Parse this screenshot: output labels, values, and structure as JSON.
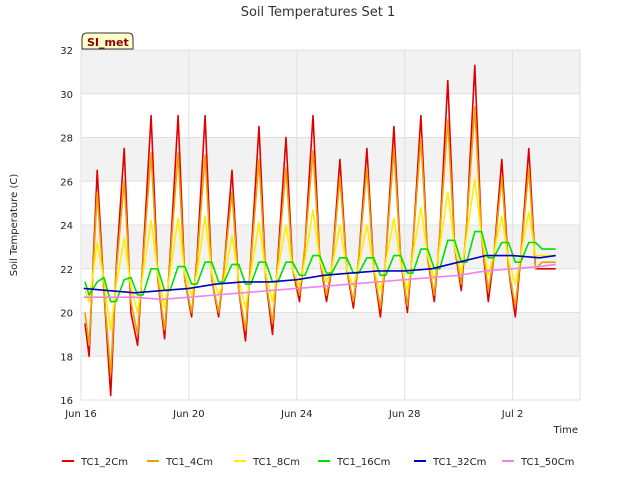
{
  "chart_data": {
    "type": "line",
    "title": "Soil Temperatures Set 1",
    "xlabel": "Time",
    "ylabel": "Soil Temperature (C)",
    "badge": "SI_met",
    "ylim": [
      16,
      32
    ],
    "yticks": [
      16,
      18,
      20,
      22,
      24,
      26,
      28,
      30,
      32
    ],
    "xlim": [
      0,
      18.5
    ],
    "xticks": [
      {
        "label": "Jun 16",
        "value": 0
      },
      {
        "label": "Jun 20",
        "value": 4
      },
      {
        "label": "Jun 24",
        "value": 8
      },
      {
        "label": "Jun 28",
        "value": 12
      },
      {
        "label": "Jul 2",
        "value": 16
      }
    ],
    "x_unit": "days since Jun 16",
    "grid": true,
    "legend_position": "bottom",
    "series": [
      {
        "name": "TC1_2Cm",
        "color": "#e00000",
        "x": [
          0.15,
          0.3,
          0.6,
          0.85,
          1.1,
          1.3,
          1.6,
          1.85,
          2.1,
          2.3,
          2.6,
          2.85,
          3.1,
          3.3,
          3.6,
          3.85,
          4.1,
          4.3,
          4.6,
          4.85,
          5.1,
          5.3,
          5.6,
          5.85,
          6.1,
          6.3,
          6.6,
          6.85,
          7.1,
          7.3,
          7.6,
          7.85,
          8.1,
          8.3,
          8.6,
          8.85,
          9.1,
          9.3,
          9.6,
          9.85,
          10.1,
          10.3,
          10.6,
          10.85,
          11.1,
          11.3,
          11.6,
          11.85,
          12.1,
          12.3,
          12.6,
          12.85,
          13.1,
          13.3,
          13.6,
          13.85,
          14.1,
          14.3,
          14.6,
          14.85,
          15.1,
          15.3,
          15.6,
          15.85,
          16.1,
          16.3,
          16.6,
          16.85,
          17.1,
          17.3,
          17.6
        ],
        "y": [
          19.5,
          18.0,
          26.5,
          21.0,
          16.2,
          22.0,
          27.5,
          20.0,
          18.5,
          22.5,
          29.0,
          21.5,
          18.8,
          22.5,
          29.0,
          21.5,
          19.8,
          22.5,
          29.0,
          21.5,
          19.8,
          22.0,
          26.5,
          21.0,
          18.7,
          22.5,
          28.5,
          21.5,
          19.0,
          22.5,
          28.0,
          22.0,
          20.5,
          23.0,
          29.0,
          22.5,
          20.5,
          22.0,
          27.0,
          22.0,
          20.2,
          22.5,
          27.5,
          22.0,
          19.8,
          22.5,
          28.5,
          22.5,
          20.0,
          23.0,
          29.0,
          22.5,
          20.5,
          23.5,
          30.6,
          23.0,
          21.0,
          24.0,
          31.3,
          23.5,
          20.5,
          22.5,
          27.0,
          22.0,
          19.8,
          22.5,
          27.5,
          22.0,
          22.0,
          22.0,
          22.0
        ]
      },
      {
        "name": "TC1_4Cm",
        "color": "#f0a000",
        "x": [
          0.15,
          0.3,
          0.6,
          0.85,
          1.1,
          1.3,
          1.6,
          1.85,
          2.1,
          2.3,
          2.6,
          2.85,
          3.1,
          3.3,
          3.6,
          3.85,
          4.1,
          4.3,
          4.6,
          4.85,
          5.1,
          5.3,
          5.6,
          5.85,
          6.1,
          6.3,
          6.6,
          6.85,
          7.1,
          7.3,
          7.6,
          7.85,
          8.1,
          8.3,
          8.6,
          8.85,
          9.1,
          9.3,
          9.6,
          9.85,
          10.1,
          10.3,
          10.6,
          10.85,
          11.1,
          11.3,
          11.6,
          11.85,
          12.1,
          12.3,
          12.6,
          12.85,
          13.1,
          13.3,
          13.6,
          13.85,
          14.1,
          14.3,
          14.6,
          14.85,
          15.1,
          15.3,
          15.6,
          15.85,
          16.1,
          16.3,
          16.6,
          16.85,
          17.1,
          17.3,
          17.6
        ],
        "y": [
          20.0,
          18.5,
          25.5,
          21.0,
          17.2,
          21.8,
          26.0,
          20.5,
          19.0,
          22.3,
          27.3,
          21.5,
          19.2,
          22.3,
          27.3,
          21.5,
          20.0,
          22.3,
          27.2,
          21.5,
          20.0,
          22.0,
          25.5,
          21.0,
          19.2,
          22.3,
          27.0,
          21.5,
          19.5,
          22.3,
          26.6,
          22.0,
          20.8,
          23.0,
          27.4,
          22.5,
          20.8,
          22.0,
          26.2,
          22.0,
          20.5,
          22.5,
          26.6,
          22.0,
          20.2,
          22.5,
          27.5,
          22.5,
          20.3,
          23.0,
          28.0,
          22.5,
          20.8,
          23.5,
          28.8,
          23.0,
          21.3,
          24.0,
          29.4,
          23.5,
          21.0,
          22.5,
          26.2,
          22.0,
          20.3,
          22.5,
          26.6,
          22.0,
          22.3,
          22.3,
          22.3
        ]
      },
      {
        "name": "TC1_8Cm",
        "color": "#ffee00",
        "x": [
          0.15,
          0.3,
          0.6,
          0.85,
          1.1,
          1.3,
          1.6,
          1.85,
          2.1,
          2.3,
          2.6,
          2.85,
          3.1,
          3.3,
          3.6,
          3.85,
          4.1,
          4.3,
          4.6,
          4.85,
          5.1,
          5.3,
          5.6,
          5.85,
          6.1,
          6.3,
          6.6,
          6.85,
          7.1,
          7.3,
          7.6,
          7.85,
          8.1,
          8.3,
          8.6,
          8.85,
          9.1,
          9.3,
          9.6,
          9.85,
          10.1,
          10.3,
          10.6,
          10.85,
          11.1,
          11.3,
          11.6,
          11.85,
          12.1,
          12.3,
          12.6,
          12.85,
          13.1,
          13.3,
          13.6,
          13.85,
          14.1,
          14.3,
          14.6,
          14.85,
          15.1,
          15.3,
          15.6,
          15.85,
          16.1,
          16.3,
          16.6,
          16.85,
          17.1,
          17.3,
          17.6
        ],
        "y": [
          21.0,
          20.5,
          23.2,
          21.5,
          19.2,
          21.2,
          23.4,
          21.2,
          20.0,
          21.8,
          24.2,
          21.8,
          20.2,
          21.8,
          24.3,
          21.8,
          20.8,
          21.8,
          24.4,
          21.8,
          20.8,
          21.5,
          23.5,
          21.5,
          20.2,
          21.8,
          24.1,
          21.8,
          20.5,
          22.0,
          24.0,
          22.0,
          21.2,
          22.4,
          24.7,
          22.4,
          21.4,
          22.0,
          24.0,
          22.0,
          21.2,
          22.2,
          24.0,
          22.0,
          21.0,
          22.3,
          24.3,
          22.3,
          21.0,
          22.6,
          24.8,
          22.6,
          21.5,
          23.0,
          25.5,
          23.0,
          21.8,
          23.5,
          26.1,
          23.5,
          21.7,
          22.7,
          24.4,
          22.4,
          21.3,
          22.6,
          24.6,
          22.6,
          22.6,
          22.6,
          22.6
        ]
      },
      {
        "name": "TC1_16Cm",
        "color": "#00e000",
        "x": [
          0.15,
          0.3,
          0.6,
          0.85,
          1.1,
          1.3,
          1.6,
          1.85,
          2.1,
          2.3,
          2.6,
          2.85,
          3.1,
          3.3,
          3.6,
          3.85,
          4.1,
          4.3,
          4.6,
          4.85,
          5.1,
          5.3,
          5.6,
          5.85,
          6.1,
          6.3,
          6.6,
          6.85,
          7.1,
          7.3,
          7.6,
          7.85,
          8.1,
          8.3,
          8.6,
          8.85,
          9.1,
          9.3,
          9.6,
          9.85,
          10.1,
          10.3,
          10.6,
          10.85,
          11.1,
          11.3,
          11.6,
          11.85,
          12.1,
          12.3,
          12.6,
          12.85,
          13.1,
          13.3,
          13.6,
          13.85,
          14.1,
          14.3,
          14.6,
          14.85,
          15.1,
          15.3,
          15.6,
          15.85,
          16.1,
          16.3,
          16.6,
          16.85,
          17.1,
          17.3,
          17.6
        ],
        "y": [
          21.4,
          20.8,
          21.4,
          21.6,
          20.5,
          20.5,
          21.5,
          21.6,
          20.8,
          20.8,
          22.0,
          22.0,
          21.0,
          21.0,
          22.1,
          22.1,
          21.3,
          21.3,
          22.3,
          22.3,
          21.4,
          21.4,
          22.2,
          22.2,
          21.3,
          21.3,
          22.3,
          22.3,
          21.4,
          21.4,
          22.3,
          22.3,
          21.7,
          21.7,
          22.6,
          22.6,
          21.8,
          21.8,
          22.5,
          22.5,
          21.8,
          21.8,
          22.5,
          22.5,
          21.7,
          21.7,
          22.6,
          22.6,
          21.8,
          21.8,
          22.9,
          22.9,
          22.0,
          22.0,
          23.3,
          23.3,
          22.3,
          22.3,
          23.7,
          23.7,
          22.5,
          22.5,
          23.2,
          23.2,
          22.3,
          22.3,
          23.2,
          23.2,
          22.9,
          22.9,
          22.9
        ]
      },
      {
        "name": "TC1_32Cm",
        "color": "#0000c0",
        "x": [
          0.1,
          1.0,
          2.0,
          3.0,
          4.0,
          5.0,
          6.0,
          7.0,
          8.0,
          9.0,
          10.0,
          11.0,
          12.0,
          13.0,
          14.0,
          15.0,
          16.0,
          17.0,
          17.6
        ],
        "y": [
          21.1,
          21.0,
          20.9,
          21.0,
          21.1,
          21.3,
          21.4,
          21.4,
          21.5,
          21.7,
          21.8,
          21.9,
          21.9,
          22.0,
          22.3,
          22.6,
          22.6,
          22.5,
          22.6
        ]
      },
      {
        "name": "TC1_50Cm",
        "color": "#ee82ee",
        "x": [
          0.1,
          1.0,
          2.0,
          3.0,
          4.0,
          5.0,
          6.0,
          7.0,
          8.0,
          9.0,
          10.0,
          11.0,
          12.0,
          13.0,
          14.0,
          15.0,
          16.0,
          17.0,
          17.6
        ],
        "y": [
          20.7,
          20.7,
          20.7,
          20.6,
          20.7,
          20.8,
          20.9,
          21.0,
          21.1,
          21.2,
          21.3,
          21.4,
          21.5,
          21.6,
          21.7,
          21.9,
          22.0,
          22.1,
          22.2
        ]
      }
    ]
  }
}
